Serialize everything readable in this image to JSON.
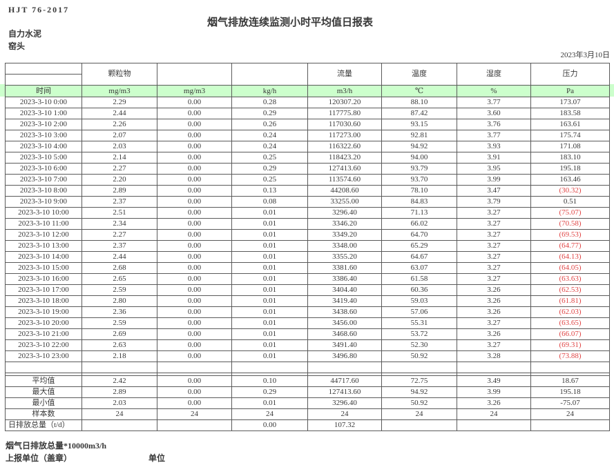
{
  "header": {
    "doc_code": "HJT 76-2017",
    "title": "烟气排放连续监测小时平均值日报表",
    "company": "自力水泥",
    "station": "窑头",
    "date": "2023年3月10日"
  },
  "colors": {
    "unit_row_green": "#ccffcc",
    "negative_red": "#e04545",
    "border_gray": "#595959"
  },
  "table": {
    "param_headers": [
      "",
      "颗粒物",
      "",
      "",
      "流量",
      "温度",
      "湿度",
      "压力"
    ],
    "unit_row": [
      "时间",
      "mg/m3",
      "mg/m3",
      "kg/h",
      "m3/h",
      "℃",
      "%",
      "Pa"
    ],
    "rows": [
      {
        "time": "2023-3-10 0:00",
        "values": [
          "2.29",
          "0.00",
          "0.28",
          "120307.20",
          "88.10",
          "3.77",
          "173.07"
        ],
        "pressure_negative": false
      },
      {
        "time": "2023-3-10 1:00",
        "values": [
          "2.44",
          "0.00",
          "0.29",
          "117775.80",
          "87.42",
          "3.60",
          "183.58"
        ],
        "pressure_negative": false
      },
      {
        "time": "2023-3-10 2:00",
        "values": [
          "2.26",
          "0.00",
          "0.26",
          "117030.60",
          "93.15",
          "3.76",
          "163.61"
        ],
        "pressure_negative": false
      },
      {
        "time": "2023-3-10 3:00",
        "values": [
          "2.07",
          "0.00",
          "0.24",
          "117273.00",
          "92.81",
          "3.77",
          "175.74"
        ],
        "pressure_negative": false
      },
      {
        "time": "2023-3-10 4:00",
        "values": [
          "2.03",
          "0.00",
          "0.24",
          "116322.60",
          "94.92",
          "3.93",
          "171.08"
        ],
        "pressure_negative": false
      },
      {
        "time": "2023-3-10 5:00",
        "values": [
          "2.14",
          "0.00",
          "0.25",
          "118423.20",
          "94.00",
          "3.91",
          "183.10"
        ],
        "pressure_negative": false
      },
      {
        "time": "2023-3-10 6:00",
        "values": [
          "2.27",
          "0.00",
          "0.29",
          "127413.60",
          "93.79",
          "3.95",
          "195.18"
        ],
        "pressure_negative": false
      },
      {
        "time": "2023-3-10 7:00",
        "values": [
          "2.20",
          "0.00",
          "0.25",
          "113574.60",
          "93.70",
          "3.99",
          "163.46"
        ],
        "pressure_negative": false
      },
      {
        "time": "2023-3-10 8:00",
        "values": [
          "2.89",
          "0.00",
          "0.13",
          "44208.60",
          "78.10",
          "3.47",
          "(30.32)"
        ],
        "pressure_negative": true
      },
      {
        "time": "2023-3-10 9:00",
        "values": [
          "2.37",
          "0.00",
          "0.08",
          "33255.00",
          "84.83",
          "3.79",
          "0.51"
        ],
        "pressure_negative": false
      },
      {
        "time": "2023-3-10 10:00",
        "values": [
          "2.51",
          "0.00",
          "0.01",
          "3296.40",
          "71.13",
          "3.27",
          "(75.07)"
        ],
        "pressure_negative": true
      },
      {
        "time": "2023-3-10 11:00",
        "values": [
          "2.34",
          "0.00",
          "0.01",
          "3346.20",
          "66.02",
          "3.27",
          "(70.58)"
        ],
        "pressure_negative": true
      },
      {
        "time": "2023-3-10 12:00",
        "values": [
          "2.27",
          "0.00",
          "0.01",
          "3349.20",
          "64.70",
          "3.27",
          "(69.53)"
        ],
        "pressure_negative": true
      },
      {
        "time": "2023-3-10 13:00",
        "values": [
          "2.37",
          "0.00",
          "0.01",
          "3348.00",
          "65.29",
          "3.27",
          "(64.77)"
        ],
        "pressure_negative": true
      },
      {
        "time": "2023-3-10 14:00",
        "values": [
          "2.44",
          "0.00",
          "0.01",
          "3355.20",
          "64.67",
          "3.27",
          "(64.13)"
        ],
        "pressure_negative": true
      },
      {
        "time": "2023-3-10 15:00",
        "values": [
          "2.68",
          "0.00",
          "0.01",
          "3381.60",
          "63.07",
          "3.27",
          "(64.05)"
        ],
        "pressure_negative": true
      },
      {
        "time": "2023-3-10 16:00",
        "values": [
          "2.65",
          "0.00",
          "0.01",
          "3386.40",
          "61.58",
          "3.27",
          "(63.63)"
        ],
        "pressure_negative": true
      },
      {
        "time": "2023-3-10 17:00",
        "values": [
          "2.59",
          "0.00",
          "0.01",
          "3404.40",
          "60.36",
          "3.26",
          "(62.53)"
        ],
        "pressure_negative": true
      },
      {
        "time": "2023-3-10 18:00",
        "values": [
          "2.80",
          "0.00",
          "0.01",
          "3419.40",
          "59.03",
          "3.26",
          "(61.81)"
        ],
        "pressure_negative": true
      },
      {
        "time": "2023-3-10 19:00",
        "values": [
          "2.36",
          "0.00",
          "0.01",
          "3438.60",
          "57.06",
          "3.26",
          "(62.03)"
        ],
        "pressure_negative": true
      },
      {
        "time": "2023-3-10 20:00",
        "values": [
          "2.59",
          "0.00",
          "0.01",
          "3456.00",
          "55.31",
          "3.27",
          "(63.65)"
        ],
        "pressure_negative": true
      },
      {
        "time": "2023-3-10 21:00",
        "values": [
          "2.69",
          "0.00",
          "0.01",
          "3468.60",
          "53.72",
          "3.26",
          "(66.07)"
        ],
        "pressure_negative": true
      },
      {
        "time": "2023-3-10 22:00",
        "values": [
          "2.63",
          "0.00",
          "0.01",
          "3491.40",
          "52.30",
          "3.27",
          "(69.31)"
        ],
        "pressure_negative": true
      },
      {
        "time": "2023-3-10 23:00",
        "values": [
          "2.18",
          "0.00",
          "0.01",
          "3496.80",
          "50.92",
          "3.28",
          "(73.88)"
        ],
        "pressure_negative": true
      }
    ],
    "summary": [
      {
        "label": "平均值",
        "values": [
          "2.42",
          "0.00",
          "0.10",
          "44717.60",
          "72.75",
          "3.49",
          "18.67"
        ]
      },
      {
        "label": "最大值",
        "values": [
          "2.89",
          "0.00",
          "0.29",
          "127413.60",
          "94.92",
          "3.99",
          "195.18"
        ]
      },
      {
        "label": "最小值",
        "values": [
          "2.03",
          "0.00",
          "0.01",
          "3296.40",
          "50.92",
          "3.26",
          "-75.07"
        ]
      },
      {
        "label": "样本数",
        "values": [
          "24",
          "24",
          "24",
          "24",
          "24",
          "24",
          "24"
        ]
      },
      {
        "label": "日排放总量（t/d）",
        "values": [
          "",
          "",
          "0.00",
          "107.32",
          "",
          "",
          ""
        ]
      }
    ]
  },
  "footer": {
    "note": "烟气日排放总量*10000m3/h",
    "report_unit_label": "上报单位（盖章）",
    "unit_label": "单位"
  }
}
